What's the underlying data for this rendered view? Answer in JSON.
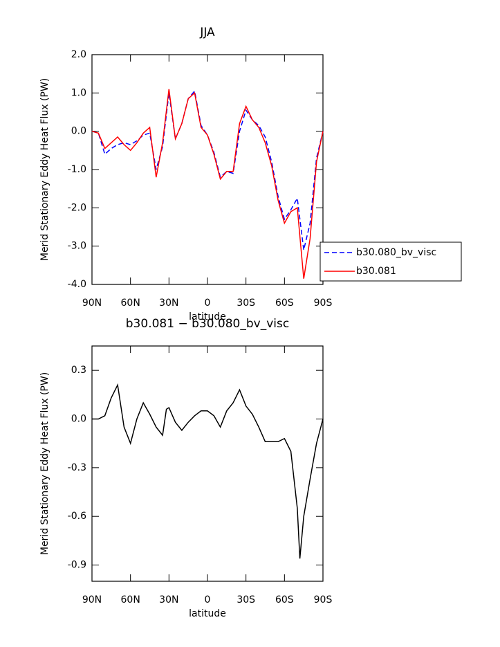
{
  "chart_data": [
    {
      "type": "line",
      "title": "JJA",
      "xlabel": "latitude",
      "ylabel": "Merid Stationary Eddy Heat Flux (PW)",
      "x": [
        90,
        85,
        80,
        75,
        70,
        65,
        60,
        55,
        50,
        45,
        40,
        35,
        30,
        25,
        20,
        15,
        10,
        5,
        0,
        -5,
        -10,
        -15,
        -20,
        -25,
        -30,
        -35,
        -40,
        -45,
        -50,
        -55,
        -60,
        -65,
        -70,
        -75,
        -80,
        -85,
        -90
      ],
      "xlim": [
        90,
        -90
      ],
      "xticks": [
        {
          "value": 90,
          "label": "90N"
        },
        {
          "value": 60,
          "label": "60N"
        },
        {
          "value": 30,
          "label": "30N"
        },
        0,
        {
          "value": -30,
          "label": "30S"
        },
        {
          "value": -60,
          "label": "60S"
        },
        {
          "value": -90,
          "label": "90S"
        }
      ],
      "ylim": [
        -4.0,
        2.0
      ],
      "yticks": [
        {
          "value": 2.0,
          "label": "2.0"
        },
        {
          "value": 1.0,
          "label": "1.0"
        },
        {
          "value": 0.0,
          "label": "0.0"
        },
        {
          "value": -1.0,
          "label": "-1.0"
        },
        {
          "value": -2.0,
          "label": "-2.0"
        },
        {
          "value": -3.0,
          "label": "-3.0"
        },
        {
          "value": -4.0,
          "label": "-4.0"
        }
      ],
      "legend": "right",
      "series": [
        {
          "name": "b30.080_bv_visc",
          "color": "#0000ff",
          "line_style": "dashed",
          "values": [
            0,
            -0.05,
            -0.6,
            -0.45,
            -0.35,
            -0.3,
            -0.35,
            -0.25,
            -0.1,
            -0.05,
            -1.0,
            -0.4,
            1.0,
            -0.2,
            0.2,
            0.85,
            1.05,
            0.15,
            -0.1,
            -0.55,
            -1.2,
            -1.05,
            -1.1,
            0.0,
            0.55,
            0.3,
            0.15,
            -0.15,
            -0.8,
            -1.7,
            -2.3,
            -2.05,
            -1.75,
            -3.1,
            -2.4,
            -0.7,
            0
          ]
        },
        {
          "name": "b30.081",
          "color": "#ff0000",
          "line_style": "solid",
          "values": [
            0,
            -0.05,
            -0.45,
            -0.3,
            -0.15,
            -0.35,
            -0.5,
            -0.3,
            -0.05,
            0.1,
            -1.2,
            -0.3,
            1.1,
            -0.2,
            0.2,
            0.85,
            1.0,
            0.1,
            -0.1,
            -0.6,
            -1.25,
            -1.05,
            -1.05,
            0.2,
            0.65,
            0.3,
            0.1,
            -0.3,
            -0.9,
            -1.8,
            -2.4,
            -2.1,
            -2.0,
            -3.85,
            -2.8,
            -0.8,
            0
          ]
        }
      ]
    },
    {
      "type": "line",
      "title": "b30.081 − b30.080_bv_visc",
      "xlabel": "latitude",
      "ylabel": "Merid Stationary Eddy Heat Flux (PW)",
      "x": [
        90,
        85,
        80,
        75,
        70,
        65,
        60,
        55,
        50,
        45,
        40,
        35,
        32,
        30,
        25,
        20,
        15,
        10,
        5,
        0,
        -5,
        -10,
        -15,
        -20,
        -25,
        -30,
        -35,
        -40,
        -45,
        -50,
        -55,
        -60,
        -65,
        -70,
        -72,
        -75,
        -80,
        -85,
        -90
      ],
      "xlim": [
        90,
        -90
      ],
      "xticks": [
        {
          "value": 90,
          "label": "90N"
        },
        {
          "value": 60,
          "label": "60N"
        },
        {
          "value": 30,
          "label": "30N"
        },
        0,
        {
          "value": -30,
          "label": "30S"
        },
        {
          "value": -60,
          "label": "60S"
        },
        {
          "value": -90,
          "label": "90S"
        }
      ],
      "ylim": [
        -1.0,
        0.45
      ],
      "yticks": [
        0.3,
        {
          "value": 0.0,
          "label": "0.0"
        },
        -0.3,
        -0.6,
        -0.9
      ],
      "color": "#000000",
      "values": [
        0,
        0,
        0.02,
        0.13,
        0.21,
        -0.05,
        -0.15,
        0.0,
        0.1,
        0.03,
        -0.05,
        -0.1,
        0.06,
        0.07,
        -0.02,
        -0.07,
        -0.02,
        0.02,
        0.05,
        0.05,
        0.02,
        -0.05,
        0.05,
        0.1,
        0.18,
        0.08,
        0.03,
        -0.05,
        -0.14,
        -0.14,
        -0.14,
        -0.12,
        -0.2,
        -0.55,
        -0.86,
        -0.6,
        -0.37,
        -0.15,
        0
      ]
    }
  ]
}
